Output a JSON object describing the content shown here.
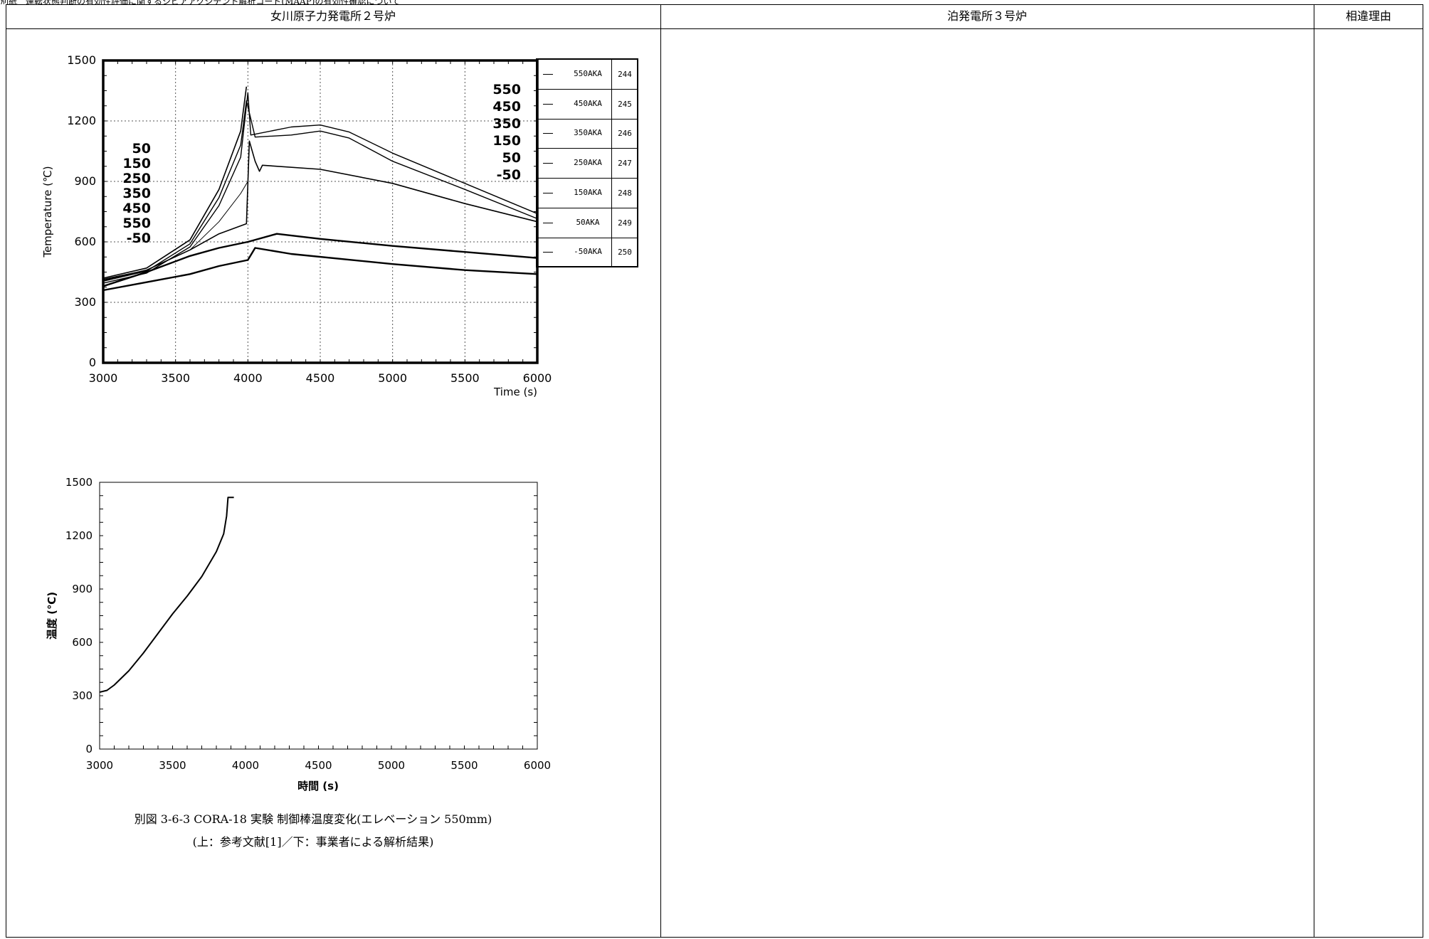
{
  "header_strip": "別紙　運転状態判断の有効性評価に関するシビアアクシデント解析コード(MAAP)の有効性確認について",
  "table": {
    "col1_header": "女川原子力発電所２号炉",
    "col2_header": "泊発電所３号炉",
    "col3_header": "相違理由"
  },
  "figure_caption": {
    "line1": "別図 3-6-3 CORA-18 実験 制御棒温度変化(エレベーション 550mm)",
    "line2": "(上：参考文献[1]／下：事業者による解析結果)"
  },
  "chart_data": [
    {
      "type": "line",
      "xlabel": "Time (s)",
      "ylabel": "Temperature (℃)",
      "xlim": [
        3000,
        6000
      ],
      "ylim": [
        0,
        1500
      ],
      "xticks": [
        3000,
        3500,
        4000,
        4500,
        5000,
        5500,
        6000
      ],
      "yticks": [
        0,
        300,
        600,
        900,
        1200,
        1500
      ],
      "grid": true,
      "left_labels": [
        "50",
        "150",
        "250",
        "350",
        "450",
        "550",
        "-50"
      ],
      "right_labels": [
        "550",
        "450",
        "350",
        "150",
        "50",
        "-50"
      ],
      "legend": [
        {
          "name": "550AKA",
          "num": "244"
        },
        {
          "name": "450AKA",
          "num": "245"
        },
        {
          "name": "350AKA",
          "num": "246"
        },
        {
          "name": "250AKA",
          "num": "247"
        },
        {
          "name": "150AKA",
          "num": "248"
        },
        {
          "name": "50AKA",
          "num": "249"
        },
        {
          "name": "-50AKA",
          "num": "250"
        }
      ],
      "series": [
        {
          "name": "550AKA",
          "points": [
            [
              3000,
              420
            ],
            [
              3300,
              470
            ],
            [
              3600,
              610
            ],
            [
              3800,
              860
            ],
            [
              3950,
              1150
            ],
            [
              3990,
              1370
            ]
          ]
        },
        {
          "name": "450AKA",
          "points": [
            [
              3000,
              405
            ],
            [
              3300,
              455
            ],
            [
              3600,
              590
            ],
            [
              3800,
              820
            ],
            [
              3950,
              1080
            ],
            [
              3990,
              1300
            ],
            [
              4010,
              1240
            ],
            [
              4050,
              1120
            ],
            [
              4300,
              1130
            ],
            [
              4500,
              1150
            ],
            [
              4700,
              1115
            ],
            [
              5000,
              1000
            ],
            [
              5500,
              860
            ],
            [
              6000,
              715
            ]
          ]
        },
        {
          "name": "350AKA",
          "points": [
            [
              3000,
              395
            ],
            [
              3300,
              445
            ],
            [
              3600,
              575
            ],
            [
              3800,
              780
            ],
            [
              3950,
              1020
            ],
            [
              4000,
              1340
            ],
            [
              4020,
              1130
            ],
            [
              4300,
              1170
            ],
            [
              4500,
              1180
            ],
            [
              4700,
              1145
            ],
            [
              5000,
              1040
            ],
            [
              5500,
              890
            ],
            [
              6000,
              740
            ]
          ]
        },
        {
          "name": "250AKA",
          "points": [
            [
              3000,
              415
            ],
            [
              3300,
              460
            ],
            [
              3600,
              560
            ],
            [
              3800,
              700
            ],
            [
              3950,
              840
            ],
            [
              4000,
              900
            ]
          ]
        },
        {
          "name": "150AKA",
          "points": [
            [
              3000,
              410
            ],
            [
              3300,
              460
            ],
            [
              3600,
              560
            ],
            [
              3800,
              640
            ],
            [
              3990,
              690
            ],
            [
              4010,
              1100
            ],
            [
              4050,
              1000
            ],
            [
              4080,
              950
            ],
            [
              4100,
              980
            ],
            [
              4500,
              960
            ],
            [
              5000,
              890
            ],
            [
              5500,
              790
            ],
            [
              6000,
              700
            ]
          ]
        },
        {
          "name": "50AKA",
          "points": [
            [
              3000,
              380
            ],
            [
              3300,
              450
            ],
            [
              3600,
              530
            ],
            [
              3800,
              570
            ],
            [
              4000,
              600
            ],
            [
              4200,
              640
            ],
            [
              4500,
              615
            ],
            [
              5000,
              580
            ],
            [
              5500,
              550
            ],
            [
              6000,
              520
            ]
          ]
        },
        {
          "name": "-50AKA",
          "points": [
            [
              3000,
              360
            ],
            [
              3300,
              400
            ],
            [
              3600,
              440
            ],
            [
              3800,
              480
            ],
            [
              4000,
              510
            ],
            [
              4050,
              570
            ],
            [
              4300,
              540
            ],
            [
              5000,
              490
            ],
            [
              5500,
              460
            ],
            [
              6000,
              440
            ]
          ]
        }
      ]
    },
    {
      "type": "line",
      "xlabel": "時間 (s)",
      "ylabel": "温度 (℃)",
      "xlim": [
        3000,
        6000
      ],
      "ylim": [
        0,
        1500
      ],
      "xticks": [
        3000,
        3500,
        4000,
        4500,
        5000,
        5500,
        6000
      ],
      "yticks": [
        0,
        300,
        600,
        900,
        1200,
        1500
      ],
      "grid": false,
      "series": [
        {
          "points": [
            [
              3000,
              320
            ],
            [
              3050,
              330
            ],
            [
              3100,
              360
            ],
            [
              3200,
              440
            ],
            [
              3300,
              540
            ],
            [
              3400,
              650
            ],
            [
              3500,
              760
            ],
            [
              3600,
              860
            ],
            [
              3700,
              970
            ],
            [
              3800,
              1110
            ],
            [
              3850,
              1210
            ],
            [
              3870,
              1310
            ],
            [
              3880,
              1415
            ],
            [
              3920,
              1415
            ]
          ]
        }
      ]
    }
  ],
  "colors": {
    "line": "#000000",
    "grid": "#555555",
    "border": "#000000"
  }
}
